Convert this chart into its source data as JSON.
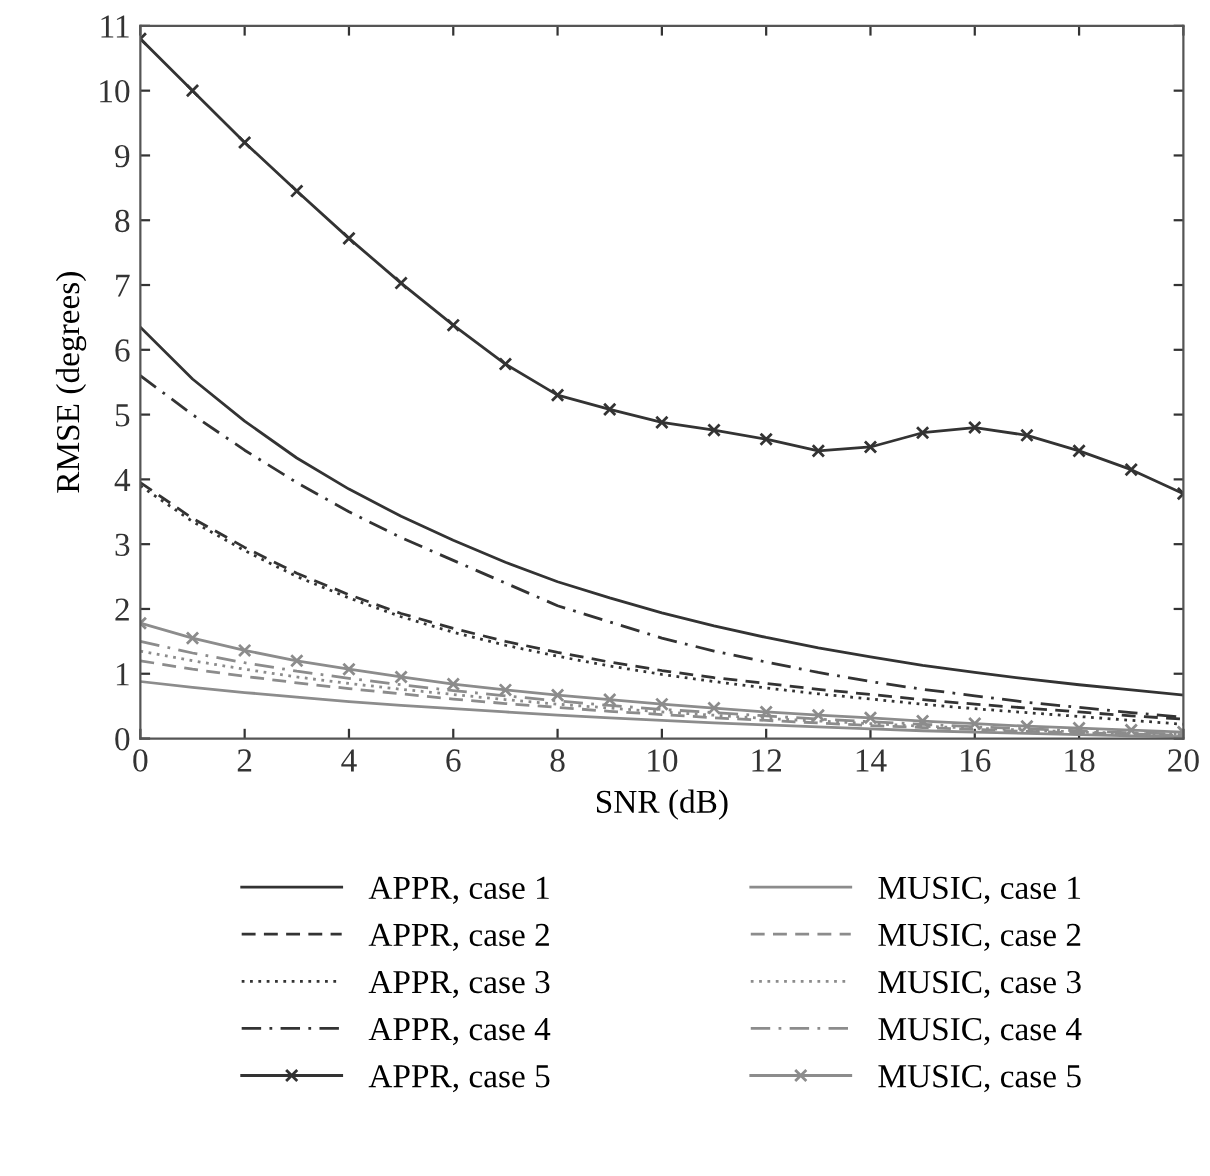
{
  "chart_data": {
    "type": "line",
    "xlabel": "SNR (dB)",
    "ylabel": "RMSE (degrees)",
    "xlim": [
      0,
      20
    ],
    "ylim": [
      0,
      11
    ],
    "xticks": [
      0,
      2,
      4,
      6,
      8,
      10,
      12,
      14,
      16,
      18,
      20
    ],
    "yticks": [
      0,
      1,
      2,
      3,
      4,
      5,
      6,
      7,
      8,
      9,
      10,
      11
    ],
    "grid": false,
    "legend": "bottom",
    "x": [
      0,
      1,
      2,
      3,
      4,
      5,
      6,
      7,
      8,
      9,
      10,
      11,
      12,
      13,
      14,
      15,
      16,
      17,
      18,
      19,
      20
    ],
    "series": [
      {
        "name": "APPR, case 1",
        "color": "#333333",
        "line_style": "solid",
        "marker": "none",
        "values": [
          6.35,
          5.55,
          4.9,
          4.33,
          3.85,
          3.43,
          3.06,
          2.72,
          2.42,
          2.17,
          1.94,
          1.74,
          1.56,
          1.4,
          1.26,
          1.13,
          1.02,
          0.92,
          0.83,
          0.75,
          0.67
        ]
      },
      {
        "name": "APPR, case 2",
        "color": "#333333",
        "line_style": "dashed",
        "marker": "none",
        "values": [
          3.95,
          3.4,
          2.95,
          2.55,
          2.22,
          1.93,
          1.7,
          1.5,
          1.33,
          1.18,
          1.05,
          0.94,
          0.85,
          0.76,
          0.68,
          0.6,
          0.53,
          0.47,
          0.41,
          0.35,
          0.3
        ]
      },
      {
        "name": "APPR, case 3",
        "color": "#333333",
        "line_style": "dotted",
        "marker": "none",
        "values": [
          3.9,
          3.35,
          2.9,
          2.5,
          2.17,
          1.88,
          1.64,
          1.44,
          1.27,
          1.12,
          0.99,
          0.88,
          0.78,
          0.69,
          0.61,
          0.53,
          0.46,
          0.4,
          0.34,
          0.28,
          0.22
        ]
      },
      {
        "name": "APPR, case 4",
        "color": "#333333",
        "line_style": "dashdot",
        "marker": "none",
        "values": [
          5.6,
          5.0,
          4.45,
          3.95,
          3.5,
          3.1,
          2.75,
          2.4,
          2.05,
          1.8,
          1.55,
          1.35,
          1.18,
          1.02,
          0.88,
          0.76,
          0.66,
          0.56,
          0.48,
          0.4,
          0.33
        ]
      },
      {
        "name": "APPR, case 5",
        "color": "#333333",
        "line_style": "solid",
        "marker": "cross",
        "values": [
          10.8,
          10.0,
          9.2,
          8.45,
          7.72,
          7.03,
          6.38,
          5.78,
          5.3,
          5.08,
          4.88,
          4.76,
          4.62,
          4.44,
          4.5,
          4.72,
          4.8,
          4.68,
          4.44,
          4.15,
          3.78
        ]
      },
      {
        "name": "MUSIC, case 1",
        "color": "#8c8c8c",
        "line_style": "solid",
        "marker": "none",
        "values": [
          0.88,
          0.79,
          0.71,
          0.64,
          0.57,
          0.51,
          0.46,
          0.41,
          0.36,
          0.32,
          0.28,
          0.24,
          0.21,
          0.18,
          0.15,
          0.12,
          0.1,
          0.08,
          0.06,
          0.04,
          0.03
        ]
      },
      {
        "name": "MUSIC, case 2",
        "color": "#8c8c8c",
        "line_style": "dashed",
        "marker": "none",
        "values": [
          1.2,
          1.07,
          0.96,
          0.86,
          0.77,
          0.69,
          0.61,
          0.54,
          0.48,
          0.42,
          0.37,
          0.32,
          0.28,
          0.24,
          0.2,
          0.17,
          0.14,
          0.11,
          0.09,
          0.07,
          0.05
        ]
      },
      {
        "name": "MUSIC, case 3",
        "color": "#8c8c8c",
        "line_style": "dotted",
        "marker": "none",
        "values": [
          1.35,
          1.2,
          1.07,
          0.95,
          0.85,
          0.76,
          0.68,
          0.6,
          0.53,
          0.47,
          0.41,
          0.36,
          0.31,
          0.27,
          0.23,
          0.19,
          0.16,
          0.13,
          0.1,
          0.08,
          0.06
        ]
      },
      {
        "name": "MUSIC, case 4",
        "color": "#8c8c8c",
        "line_style": "dashdot",
        "marker": "none",
        "values": [
          1.5,
          1.32,
          1.17,
          1.04,
          0.93,
          0.83,
          0.74,
          0.66,
          0.58,
          0.51,
          0.45,
          0.4,
          0.35,
          0.3,
          0.26,
          0.22,
          0.18,
          0.15,
          0.12,
          0.09,
          0.07
        ]
      },
      {
        "name": "MUSIC, case 5",
        "color": "#8c8c8c",
        "line_style": "solid",
        "marker": "cross",
        "values": [
          1.78,
          1.55,
          1.36,
          1.2,
          1.07,
          0.95,
          0.84,
          0.75,
          0.67,
          0.6,
          0.53,
          0.47,
          0.41,
          0.36,
          0.32,
          0.27,
          0.23,
          0.19,
          0.16,
          0.13,
          0.1
        ]
      }
    ]
  }
}
